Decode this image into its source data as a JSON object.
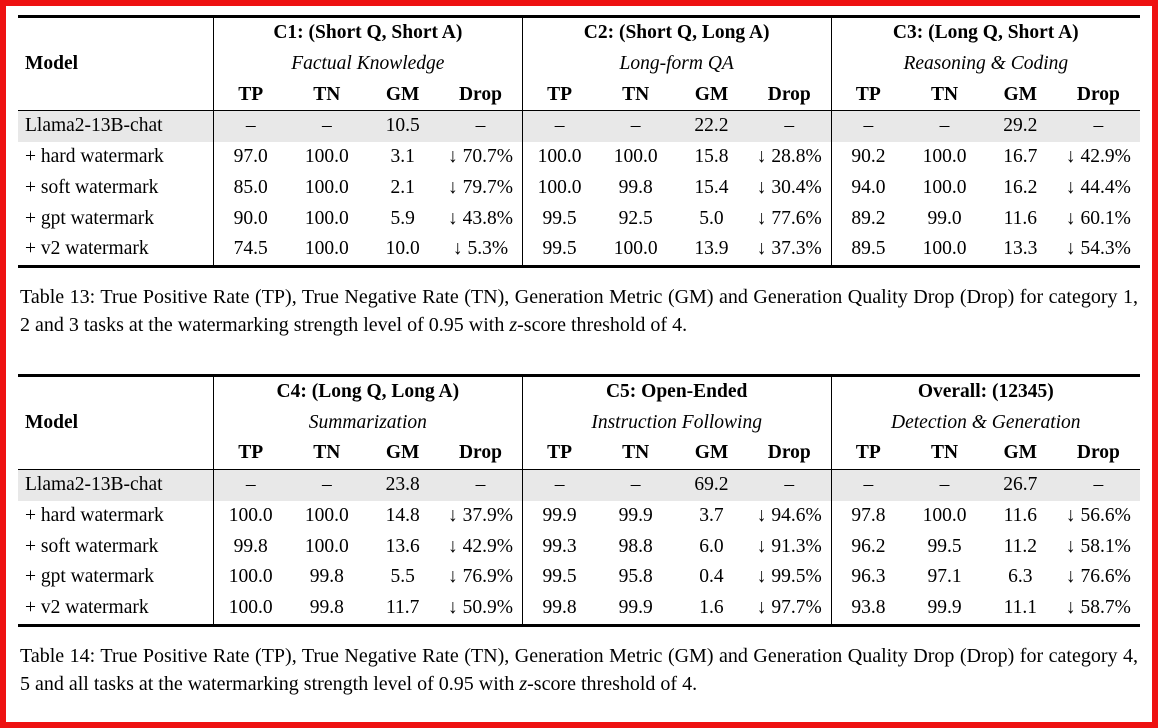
{
  "page": {
    "frame_color": "#ee1111",
    "highlight_row_color": "#e8e8e8"
  },
  "tables": [
    {
      "name": "table-13",
      "model_header": "Model",
      "groups": [
        {
          "title": "C1: (Short Q, Short A)",
          "subtitle": "Factual Knowledge",
          "columns": [
            "TP",
            "TN",
            "GM",
            "Drop"
          ]
        },
        {
          "title": "C2: (Short Q, Long A)",
          "subtitle": "Long-form QA",
          "columns": [
            "TP",
            "TN",
            "GM",
            "Drop"
          ]
        },
        {
          "title": "C3: (Long Q, Short A)",
          "subtitle": "Reasoning & Coding",
          "columns": [
            "TP",
            "TN",
            "GM",
            "Drop"
          ]
        }
      ],
      "rows": [
        {
          "model": "Llama2-13B-chat",
          "highlight": true,
          "values": [
            "–",
            "–",
            "10.5",
            "–",
            "–",
            "–",
            "22.2",
            "–",
            "–",
            "–",
            "29.2",
            "–"
          ]
        },
        {
          "model": "+ hard watermark",
          "highlight": false,
          "values": [
            "97.0",
            "100.0",
            "3.1",
            "↓ 70.7%",
            "100.0",
            "100.0",
            "15.8",
            "↓ 28.8%",
            "90.2",
            "100.0",
            "16.7",
            "↓ 42.9%"
          ]
        },
        {
          "model": "+ soft watermark",
          "highlight": false,
          "values": [
            "85.0",
            "100.0",
            "2.1",
            "↓ 79.7%",
            "100.0",
            "99.8",
            "15.4",
            "↓ 30.4%",
            "94.0",
            "100.0",
            "16.2",
            "↓ 44.4%"
          ]
        },
        {
          "model": "+ gpt watermark",
          "highlight": false,
          "values": [
            "90.0",
            "100.0",
            "5.9",
            "↓ 43.8%",
            "99.5",
            "92.5",
            "5.0",
            "↓ 77.6%",
            "89.2",
            "99.0",
            "11.6",
            "↓ 60.1%"
          ]
        },
        {
          "model": "+ v2 watermark",
          "highlight": false,
          "values": [
            "74.5",
            "100.0",
            "10.0",
            "↓ 5.3%",
            "99.5",
            "100.0",
            "13.9",
            "↓ 37.3%",
            "89.5",
            "100.0",
            "13.3",
            "↓ 54.3%"
          ]
        }
      ],
      "caption_parts": [
        "Table 13: True Positive Rate (TP), True Negative Rate (TN), Generation Metric (GM) and Generation Quality Drop (Drop) for category 1, 2 and 3 tasks at the watermarking strength level of 0.95 with ",
        "z",
        "-score threshold of 4."
      ]
    },
    {
      "name": "table-14",
      "model_header": "Model",
      "groups": [
        {
          "title": "C4: (Long Q, Long A)",
          "subtitle": "Summarization",
          "columns": [
            "TP",
            "TN",
            "GM",
            "Drop"
          ]
        },
        {
          "title": "C5: Open-Ended",
          "subtitle": "Instruction Following",
          "columns": [
            "TP",
            "TN",
            "GM",
            "Drop"
          ]
        },
        {
          "title": "Overall: (12345)",
          "subtitle": "Detection & Generation",
          "columns": [
            "TP",
            "TN",
            "GM",
            "Drop"
          ]
        }
      ],
      "rows": [
        {
          "model": "Llama2-13B-chat",
          "highlight": true,
          "values": [
            "–",
            "–",
            "23.8",
            "–",
            "–",
            "–",
            "69.2",
            "–",
            "–",
            "–",
            "26.7",
            "–"
          ]
        },
        {
          "model": "+ hard watermark",
          "highlight": false,
          "values": [
            "100.0",
            "100.0",
            "14.8",
            "↓ 37.9%",
            "99.9",
            "99.9",
            "3.7",
            "↓ 94.6%",
            "97.8",
            "100.0",
            "11.6",
            "↓ 56.6%"
          ]
        },
        {
          "model": "+ soft watermark",
          "highlight": false,
          "values": [
            "99.8",
            "100.0",
            "13.6",
            "↓ 42.9%",
            "99.3",
            "98.8",
            "6.0",
            "↓ 91.3%",
            "96.2",
            "99.5",
            "11.2",
            "↓ 58.1%"
          ]
        },
        {
          "model": "+ gpt watermark",
          "highlight": false,
          "values": [
            "100.0",
            "99.8",
            "5.5",
            "↓ 76.9%",
            "99.5",
            "95.8",
            "0.4",
            "↓ 99.5%",
            "96.3",
            "97.1",
            "6.3",
            "↓ 76.6%"
          ]
        },
        {
          "model": "+ v2 watermark",
          "highlight": false,
          "values": [
            "100.0",
            "99.8",
            "11.7",
            "↓ 50.9%",
            "99.8",
            "99.9",
            "1.6",
            "↓ 97.7%",
            "93.8",
            "99.9",
            "11.1",
            "↓ 58.7%"
          ]
        }
      ],
      "caption_parts": [
        "Table 14: True Positive Rate (TP), True Negative Rate (TN), Generation Metric (GM) and Generation Quality Drop (Drop) for category 4, 5 and all tasks at the watermarking strength level of 0.95 with ",
        "z",
        "-score threshold of 4."
      ]
    }
  ]
}
